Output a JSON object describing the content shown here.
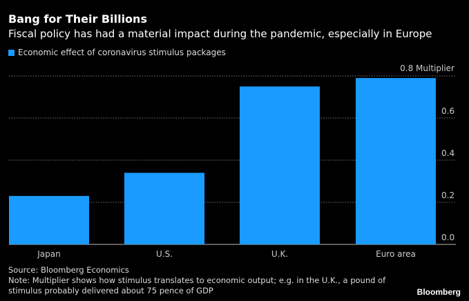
{
  "header": {
    "title": "Bang for Their Billions",
    "subtitle": "Fiscal policy has had a material impact during the pandemic, especially in Europe"
  },
  "legend": {
    "label": "Economic effect of coronavirus stimulus packages",
    "color": "#1a9bff"
  },
  "chart_data": {
    "type": "bar",
    "title": "Bang for Their Billions",
    "subtitle": "Fiscal policy has had a material impact during the pandemic, especially in Europe",
    "categories": [
      "Japan",
      "U.S.",
      "U.K.",
      "Euro area"
    ],
    "series": [
      {
        "name": "Economic effect of coronavirus stimulus packages",
        "values": [
          0.23,
          0.34,
          0.75,
          0.79
        ],
        "color": "#1a9bff"
      }
    ],
    "xlabel": "",
    "ylabel": "Multiplier",
    "ylim": [
      0,
      0.8
    ],
    "yticks": [
      0.0,
      0.2,
      0.4,
      0.6,
      0.8
    ],
    "ytick_labels": [
      "0.0",
      "0.2",
      "0.4",
      "0.6",
      "0.8 Multiplier"
    ],
    "y_axis_side": "right",
    "grid": true,
    "legend_position": "top-left"
  },
  "footer": {
    "source": "Source: Bloomberg Economics",
    "note": "Note: Multiplier shows how stimulus translates to economic output; e.g. in the U.K., a pound of stimulus probably delivered about 75 pence of GDP",
    "brand": "Bloomberg"
  }
}
